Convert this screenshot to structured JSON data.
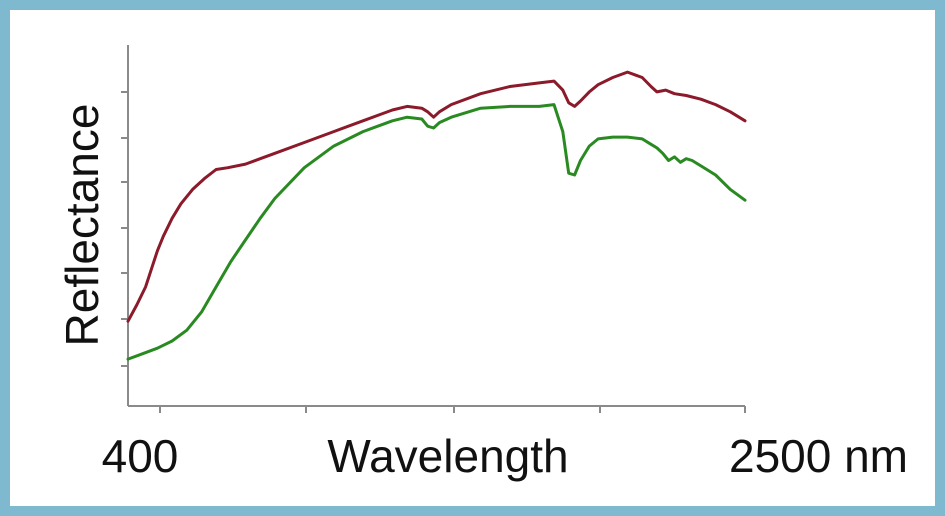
{
  "colors": {
    "frame_border": "#7fb9cf",
    "background": "#ffffff",
    "axis": "#8a8a8a",
    "text": "#111111"
  },
  "chart_data": {
    "type": "line",
    "title": "",
    "ylabel": "Reflectance",
    "xlabel": "Wavelength",
    "x_tick_labels": {
      "min": "400",
      "max": "2500 nm"
    },
    "xlim": [
      400,
      2500
    ],
    "ylim": [
      0,
      1
    ],
    "grid": false,
    "series": [
      {
        "color": "#8b1a2b",
        "x": [
          400,
          430,
          460,
          480,
          500,
          520,
          550,
          580,
          620,
          660,
          700,
          740,
          800,
          850,
          900,
          1000,
          1100,
          1200,
          1300,
          1350,
          1400,
          1420,
          1440,
          1460,
          1500,
          1600,
          1700,
          1800,
          1850,
          1880,
          1900,
          1920,
          1940,
          1970,
          2000,
          2050,
          2100,
          2150,
          2180,
          2200,
          2230,
          2260,
          2300,
          2350,
          2400,
          2450,
          2500
        ],
        "y": [
          0.235,
          0.28,
          0.33,
          0.38,
          0.43,
          0.47,
          0.52,
          0.56,
          0.6,
          0.63,
          0.655,
          0.66,
          0.67,
          0.685,
          0.7,
          0.73,
          0.76,
          0.79,
          0.82,
          0.83,
          0.825,
          0.815,
          0.8,
          0.815,
          0.835,
          0.865,
          0.885,
          0.895,
          0.9,
          0.875,
          0.84,
          0.83,
          0.845,
          0.87,
          0.89,
          0.91,
          0.925,
          0.91,
          0.885,
          0.87,
          0.875,
          0.865,
          0.86,
          0.85,
          0.835,
          0.815,
          0.79
        ]
      },
      {
        "color": "#2a8a22",
        "x": [
          400,
          450,
          500,
          550,
          600,
          650,
          700,
          750,
          800,
          850,
          900,
          1000,
          1100,
          1200,
          1300,
          1350,
          1400,
          1420,
          1440,
          1460,
          1500,
          1600,
          1700,
          1800,
          1850,
          1880,
          1900,
          1920,
          1940,
          1970,
          2000,
          2050,
          2100,
          2150,
          2180,
          2200,
          2220,
          2240,
          2260,
          2280,
          2300,
          2320,
          2350,
          2400,
          2450,
          2500
        ],
        "y": [
          0.13,
          0.145,
          0.16,
          0.18,
          0.21,
          0.26,
          0.33,
          0.4,
          0.46,
          0.52,
          0.575,
          0.66,
          0.72,
          0.76,
          0.79,
          0.8,
          0.795,
          0.775,
          0.77,
          0.785,
          0.8,
          0.825,
          0.83,
          0.83,
          0.835,
          0.76,
          0.645,
          0.64,
          0.68,
          0.72,
          0.74,
          0.745,
          0.745,
          0.74,
          0.725,
          0.715,
          0.7,
          0.68,
          0.69,
          0.675,
          0.685,
          0.68,
          0.665,
          0.64,
          0.6,
          0.57
        ]
      }
    ]
  }
}
